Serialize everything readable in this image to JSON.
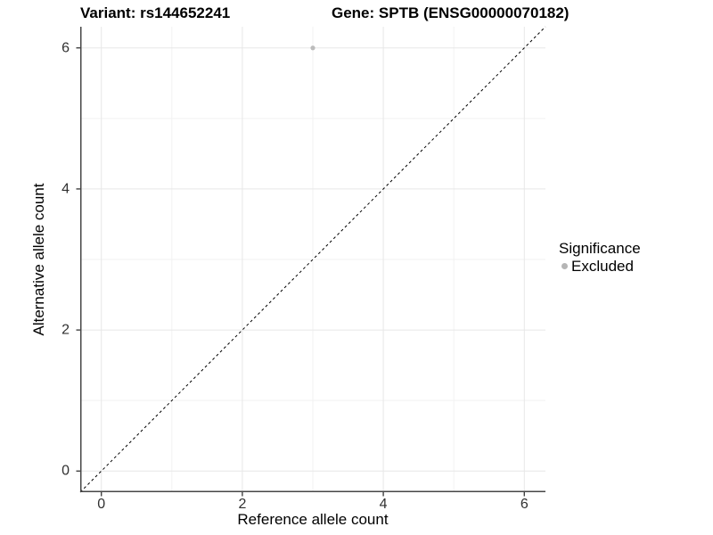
{
  "chart_data": {
    "type": "scatter",
    "titles": {
      "left": "Variant: rs144652241",
      "right": "Gene: SPTB (ENSG00000070182)"
    },
    "xlabel": "Reference allele count",
    "ylabel": "Alternative allele count",
    "xlim": [
      -0.3,
      6.3
    ],
    "ylim": [
      -0.3,
      6.3
    ],
    "x_major_ticks": [
      0,
      2,
      4,
      6
    ],
    "y_major_ticks": [
      0,
      2,
      4,
      6
    ],
    "x_minor_ticks": [
      1,
      3,
      5
    ],
    "y_minor_ticks": [
      1,
      3,
      5
    ],
    "grid": "major and minor gridlines on white panel",
    "series": [
      {
        "name": "Excluded",
        "marker_color": "#bcbcbc",
        "points": [
          {
            "x": 3,
            "y": 6
          }
        ]
      }
    ],
    "reference_line": {
      "type": "identity",
      "from": [
        -0.3,
        -0.3
      ],
      "to": [
        6.3,
        6.3
      ],
      "style": "dashed",
      "color": "#000000"
    },
    "legend": {
      "title": "Significance",
      "position": "right",
      "entries": [
        {
          "label": "Excluded",
          "marker": "point",
          "color": "#b5b5b5"
        }
      ]
    },
    "colors": {
      "background": "#ffffff",
      "major_grid": "#e7e7e7",
      "minor_grid": "#f2f2f2",
      "axis_line": "#474747",
      "tick_mark": "#333333",
      "tick_label": "#303030",
      "title_text": "#000000"
    }
  }
}
